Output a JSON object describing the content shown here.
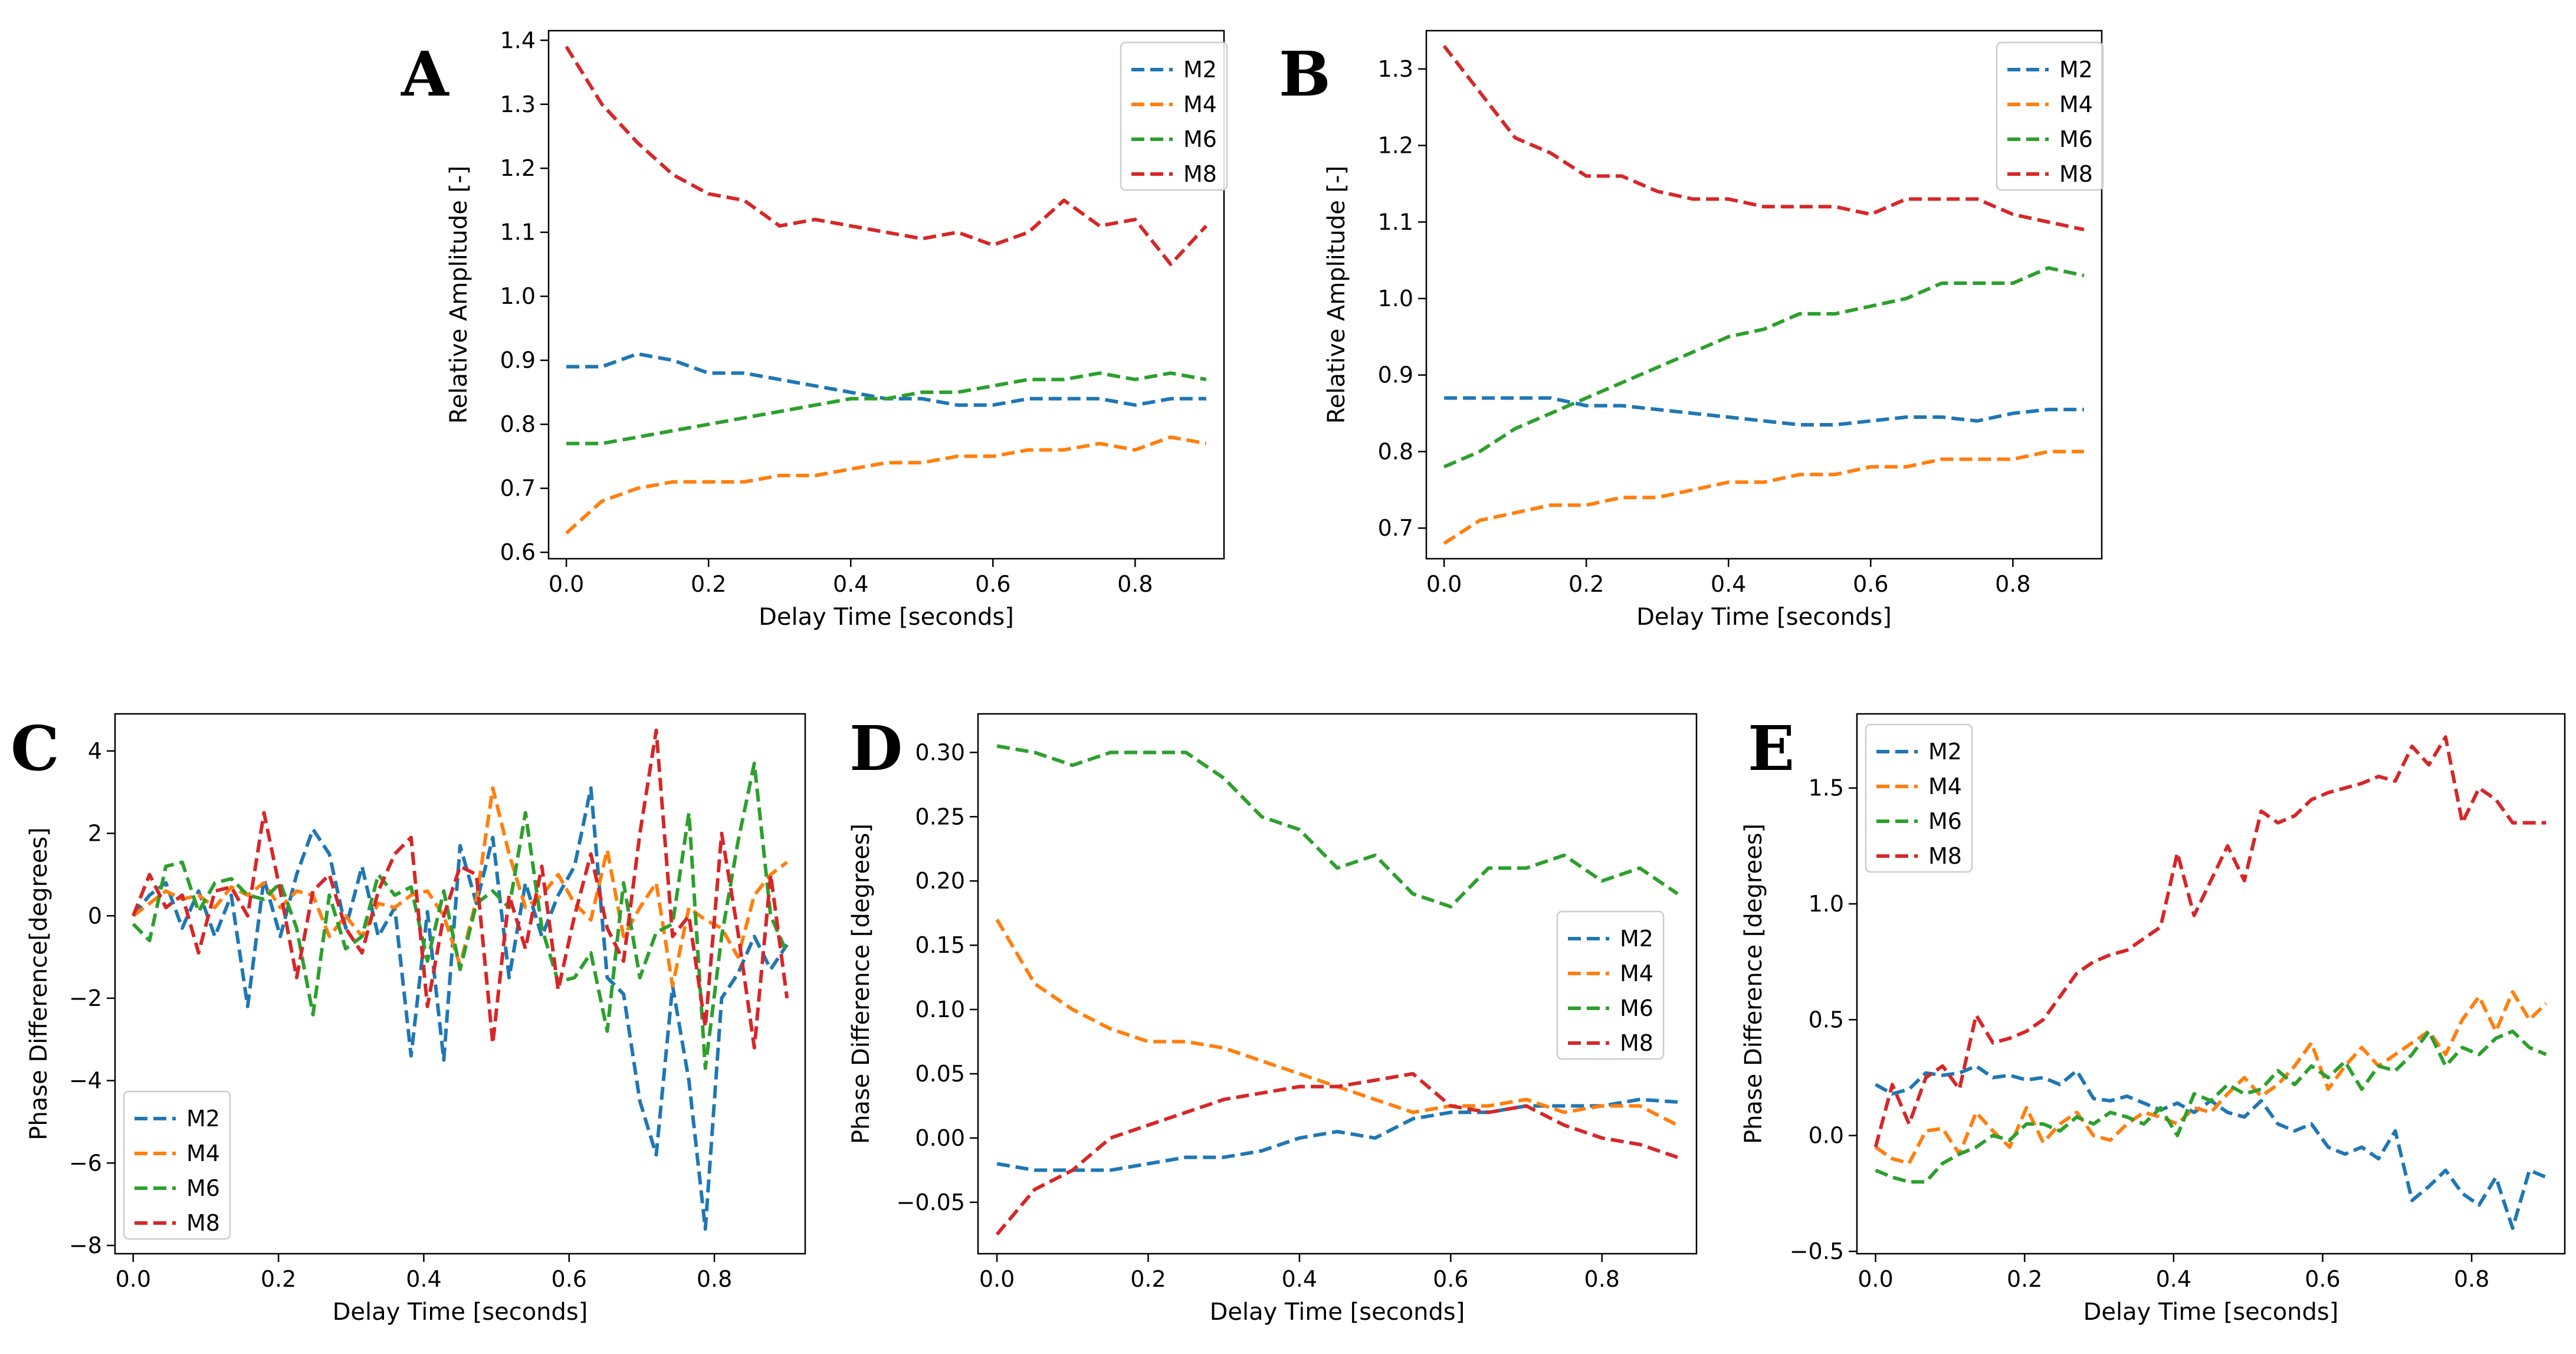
{
  "colors": {
    "M2": "#1f77b4",
    "M4": "#ff7f0e",
    "M6": "#2ca02c",
    "M8": "#d62728"
  },
  "chart_data": [
    {
      "panel": "A",
      "type": "line",
      "xlabel": "Delay Time [seconds]",
      "ylabel": "Relative Amplitude [-]",
      "xlim": [
        -0.025,
        0.925
      ],
      "ylim": [
        0.59,
        1.415
      ],
      "xticks": [
        0.0,
        0.2,
        0.4,
        0.6,
        0.8
      ],
      "xtick_labels": [
        "0.0",
        "0.2",
        "0.4",
        "0.6",
        "0.8"
      ],
      "yticks": [
        0.6,
        0.7,
        0.8,
        0.9,
        1.0,
        1.1,
        1.2,
        1.3,
        1.4
      ],
      "ytick_labels": [
        "0.6",
        "0.7",
        "0.8",
        "0.9",
        "1.0",
        "1.1",
        "1.2",
        "1.3",
        "1.4"
      ],
      "legend_position": "top-right",
      "grid": false,
      "x": [
        0.0,
        0.05,
        0.1,
        0.15,
        0.2,
        0.25,
        0.3,
        0.35,
        0.4,
        0.45,
        0.5,
        0.55,
        0.6,
        0.65,
        0.7,
        0.75,
        0.8,
        0.85,
        0.9
      ],
      "series": [
        {
          "name": "M2",
          "values": [
            0.89,
            0.89,
            0.91,
            0.9,
            0.88,
            0.88,
            0.87,
            0.86,
            0.85,
            0.84,
            0.84,
            0.83,
            0.83,
            0.84,
            0.84,
            0.84,
            0.83,
            0.84,
            0.84
          ]
        },
        {
          "name": "M4",
          "values": [
            0.63,
            0.68,
            0.7,
            0.71,
            0.71,
            0.71,
            0.72,
            0.72,
            0.73,
            0.74,
            0.74,
            0.75,
            0.75,
            0.76,
            0.76,
            0.77,
            0.76,
            0.78,
            0.77
          ]
        },
        {
          "name": "M6",
          "values": [
            0.77,
            0.77,
            0.78,
            0.79,
            0.8,
            0.81,
            0.82,
            0.83,
            0.84,
            0.84,
            0.85,
            0.85,
            0.86,
            0.87,
            0.87,
            0.88,
            0.87,
            0.88,
            0.87
          ]
        },
        {
          "name": "M8",
          "values": [
            1.39,
            1.3,
            1.24,
            1.19,
            1.16,
            1.15,
            1.11,
            1.12,
            1.11,
            1.1,
            1.09,
            1.1,
            1.08,
            1.1,
            1.15,
            1.11,
            1.12,
            1.05,
            1.11
          ]
        }
      ]
    },
    {
      "panel": "B",
      "type": "line",
      "xlabel": "Delay Time [seconds]",
      "ylabel": "Relative Amplitude [-]",
      "xlim": [
        -0.025,
        0.925
      ],
      "ylim": [
        0.66,
        1.35
      ],
      "xticks": [
        0.0,
        0.2,
        0.4,
        0.6,
        0.8
      ],
      "xtick_labels": [
        "0.0",
        "0.2",
        "0.4",
        "0.6",
        "0.8"
      ],
      "yticks": [
        0.7,
        0.8,
        0.9,
        1.0,
        1.1,
        1.2,
        1.3
      ],
      "ytick_labels": [
        "0.7",
        "0.8",
        "0.9",
        "1.0",
        "1.1",
        "1.2",
        "1.3"
      ],
      "legend_position": "top-right",
      "grid": false,
      "x": [
        0.0,
        0.05,
        0.1,
        0.15,
        0.2,
        0.25,
        0.3,
        0.35,
        0.4,
        0.45,
        0.5,
        0.55,
        0.6,
        0.65,
        0.7,
        0.75,
        0.8,
        0.85,
        0.9
      ],
      "series": [
        {
          "name": "M2",
          "values": [
            0.87,
            0.87,
            0.87,
            0.87,
            0.86,
            0.86,
            0.855,
            0.85,
            0.845,
            0.84,
            0.835,
            0.835,
            0.84,
            0.845,
            0.845,
            0.84,
            0.85,
            0.855,
            0.855
          ]
        },
        {
          "name": "M4",
          "values": [
            0.68,
            0.71,
            0.72,
            0.73,
            0.73,
            0.74,
            0.74,
            0.75,
            0.76,
            0.76,
            0.77,
            0.77,
            0.78,
            0.78,
            0.79,
            0.79,
            0.79,
            0.8,
            0.8
          ]
        },
        {
          "name": "M6",
          "values": [
            0.78,
            0.8,
            0.83,
            0.85,
            0.87,
            0.89,
            0.91,
            0.93,
            0.95,
            0.96,
            0.98,
            0.98,
            0.99,
            1.0,
            1.02,
            1.02,
            1.02,
            1.04,
            1.03
          ]
        },
        {
          "name": "M8",
          "values": [
            1.33,
            1.27,
            1.21,
            1.19,
            1.16,
            1.16,
            1.14,
            1.13,
            1.13,
            1.12,
            1.12,
            1.12,
            1.11,
            1.13,
            1.13,
            1.13,
            1.11,
            1.1,
            1.09
          ]
        }
      ]
    },
    {
      "panel": "C",
      "type": "line",
      "xlabel": "Delay Time [seconds]",
      "ylabel": "Phase Difference[degrees]",
      "xlim": [
        -0.025,
        0.925
      ],
      "ylim": [
        -8.2,
        4.9
      ],
      "xticks": [
        0.0,
        0.2,
        0.4,
        0.6,
        0.8
      ],
      "xtick_labels": [
        "0.0",
        "0.2",
        "0.4",
        "0.6",
        "0.8"
      ],
      "yticks": [
        -8,
        -6,
        -4,
        -2,
        0,
        2,
        4
      ],
      "ytick_labels": [
        "−8",
        "−6",
        "−4",
        "−2",
        "0",
        "2",
        "4"
      ],
      "legend_position": "lower-left",
      "grid": false,
      "x": [
        0.0,
        0.0225,
        0.045,
        0.0675,
        0.09,
        0.1125,
        0.135,
        0.1575,
        0.18,
        0.2025,
        0.225,
        0.2475,
        0.27,
        0.2925,
        0.315,
        0.3375,
        0.36,
        0.3825,
        0.405,
        0.4275,
        0.45,
        0.4725,
        0.495,
        0.5175,
        0.54,
        0.5625,
        0.585,
        0.6075,
        0.63,
        0.6525,
        0.675,
        0.6975,
        0.72,
        0.7425,
        0.765,
        0.7875,
        0.81,
        0.8325,
        0.855,
        0.8775,
        0.9
      ],
      "series": [
        {
          "name": "M2",
          "values": [
            0.0,
            0.5,
            0.8,
            -0.3,
            0.6,
            -0.5,
            0.5,
            -2.2,
            0.9,
            -0.5,
            1.0,
            2.1,
            1.5,
            -0.3,
            1.2,
            -0.5,
            0.2,
            -3.4,
            0.1,
            -3.5,
            1.7,
            0.3,
            1.9,
            -1.5,
            0.8,
            -0.5,
            0.5,
            1.2,
            3.1,
            -1.5,
            -1.9,
            -4.5,
            -5.8,
            -1.7,
            -4.0,
            -7.6,
            -2.0,
            -1.4,
            -0.5,
            -1.3,
            -0.7
          ]
        },
        {
          "name": "M4",
          "values": [
            0.0,
            0.3,
            0.6,
            0.4,
            0.5,
            0.2,
            0.7,
            0.5,
            0.8,
            0.2,
            0.6,
            0.5,
            -0.5,
            0.0,
            -0.5,
            0.3,
            0.2,
            0.5,
            0.6,
            0.0,
            -1.2,
            0.4,
            3.1,
            1.5,
            0.2,
            0.5,
            1.0,
            0.3,
            -0.1,
            1.6,
            -0.5,
            0.2,
            0.8,
            -1.7,
            0.2,
            -0.1,
            -0.3,
            -1.0,
            0.5,
            1.0,
            1.3
          ]
        },
        {
          "name": "M6",
          "values": [
            -0.2,
            -0.6,
            1.2,
            1.3,
            0.1,
            0.8,
            0.9,
            0.5,
            0.4,
            0.8,
            -0.3,
            -2.4,
            0.5,
            -0.8,
            -0.5,
            1.0,
            0.5,
            0.7,
            -1.1,
            0.6,
            -1.3,
            0.3,
            0.6,
            0.2,
            2.5,
            -0.3,
            -1.6,
            -1.5,
            -0.9,
            -2.8,
            0.8,
            -1.5,
            -0.4,
            -0.2,
            2.5,
            -3.7,
            -0.5,
            1.8,
            3.7,
            0.0,
            -0.9
          ]
        },
        {
          "name": "M8",
          "values": [
            0.0,
            1.0,
            0.2,
            0.5,
            -0.9,
            0.6,
            0.7,
            0.0,
            2.5,
            0.6,
            -1.5,
            0.6,
            1.0,
            -0.3,
            -0.9,
            0.6,
            1.5,
            1.9,
            -2.2,
            0.0,
            1.2,
            1.0,
            -3.1,
            0.5,
            -0.8,
            1.2,
            -1.8,
            0.0,
            1.5,
            -0.3,
            -1.1,
            2.0,
            4.5,
            -0.5,
            0.0,
            -2.7,
            2.0,
            -0.4,
            -3.2,
            1.0,
            -2.0
          ]
        }
      ]
    },
    {
      "panel": "D",
      "type": "line",
      "xlabel": "Delay Time [seconds]",
      "ylabel": "Phase Difference [degrees]",
      "xlim": [
        -0.025,
        0.925
      ],
      "ylim": [
        -0.09,
        0.33
      ],
      "xticks": [
        0.0,
        0.2,
        0.4,
        0.6,
        0.8
      ],
      "xtick_labels": [
        "0.0",
        "0.2",
        "0.4",
        "0.6",
        "0.8"
      ],
      "yticks": [
        -0.05,
        0.0,
        0.05,
        0.1,
        0.15,
        0.2,
        0.25,
        0.3
      ],
      "ytick_labels": [
        "−0.05",
        "0.00",
        "0.05",
        "0.10",
        "0.15",
        "0.20",
        "0.25",
        "0.30"
      ],
      "legend_position": "center-right",
      "grid": false,
      "x": [
        0.0,
        0.05,
        0.1,
        0.15,
        0.2,
        0.25,
        0.3,
        0.35,
        0.4,
        0.45,
        0.5,
        0.55,
        0.6,
        0.65,
        0.7,
        0.75,
        0.8,
        0.85,
        0.9
      ],
      "series": [
        {
          "name": "M2",
          "values": [
            -0.02,
            -0.025,
            -0.025,
            -0.025,
            -0.02,
            -0.015,
            -0.015,
            -0.01,
            0.0,
            0.005,
            0.0,
            0.015,
            0.02,
            0.02,
            0.025,
            0.025,
            0.025,
            0.03,
            0.028
          ]
        },
        {
          "name": "M4",
          "values": [
            0.17,
            0.12,
            0.1,
            0.085,
            0.075,
            0.075,
            0.07,
            0.06,
            0.05,
            0.04,
            0.03,
            0.02,
            0.025,
            0.025,
            0.03,
            0.02,
            0.025,
            0.025,
            0.01
          ]
        },
        {
          "name": "M6",
          "values": [
            0.305,
            0.3,
            0.29,
            0.3,
            0.3,
            0.3,
            0.28,
            0.25,
            0.24,
            0.21,
            0.22,
            0.19,
            0.18,
            0.21,
            0.21,
            0.22,
            0.2,
            0.21,
            0.19
          ]
        },
        {
          "name": "M8",
          "values": [
            -0.075,
            -0.04,
            -0.025,
            0.0,
            0.01,
            0.02,
            0.03,
            0.035,
            0.04,
            0.04,
            0.045,
            0.05,
            0.025,
            0.02,
            0.025,
            0.01,
            0.0,
            -0.005,
            -0.015
          ]
        }
      ]
    },
    {
      "panel": "E",
      "type": "line",
      "xlabel": "Delay Time [seconds]",
      "ylabel": "Phase Difference [degrees]",
      "xlim": [
        -0.025,
        0.925
      ],
      "ylim": [
        -0.51,
        1.82
      ],
      "xticks": [
        0.0,
        0.2,
        0.4,
        0.6,
        0.8
      ],
      "xtick_labels": [
        "0.0",
        "0.2",
        "0.4",
        "0.6",
        "0.8"
      ],
      "yticks": [
        -0.5,
        0.0,
        0.5,
        1.0,
        1.5
      ],
      "ytick_labels": [
        "−0.5",
        "0.0",
        "0.5",
        "1.0",
        "1.5"
      ],
      "legend_position": "top-left",
      "grid": false,
      "x": [
        0.0,
        0.0225,
        0.045,
        0.0675,
        0.09,
        0.1125,
        0.135,
        0.1575,
        0.18,
        0.2025,
        0.225,
        0.2475,
        0.27,
        0.2925,
        0.315,
        0.3375,
        0.36,
        0.3825,
        0.405,
        0.4275,
        0.45,
        0.4725,
        0.495,
        0.5175,
        0.54,
        0.5625,
        0.585,
        0.6075,
        0.63,
        0.6525,
        0.675,
        0.6975,
        0.72,
        0.7425,
        0.765,
        0.7875,
        0.81,
        0.8325,
        0.855,
        0.8775,
        0.9
      ],
      "series": [
        {
          "name": "M2",
          "values": [
            0.22,
            0.18,
            0.2,
            0.27,
            0.26,
            0.27,
            0.3,
            0.25,
            0.26,
            0.24,
            0.25,
            0.22,
            0.28,
            0.16,
            0.15,
            0.17,
            0.14,
            0.11,
            0.14,
            0.1,
            0.15,
            0.1,
            0.08,
            0.15,
            0.05,
            0.02,
            0.05,
            -0.05,
            -0.08,
            -0.05,
            -0.1,
            0.02,
            -0.28,
            -0.22,
            -0.15,
            -0.25,
            -0.3,
            -0.18,
            -0.4,
            -0.15,
            -0.18
          ]
        },
        {
          "name": "M4",
          "values": [
            -0.05,
            -0.1,
            -0.12,
            0.02,
            0.03,
            -0.08,
            0.1,
            0.02,
            -0.05,
            0.12,
            -0.03,
            0.05,
            0.1,
            0.0,
            -0.02,
            0.05,
            0.1,
            0.08,
            0.05,
            0.12,
            0.1,
            0.18,
            0.25,
            0.17,
            0.22,
            0.3,
            0.4,
            0.2,
            0.3,
            0.38,
            0.3,
            0.35,
            0.4,
            0.45,
            0.35,
            0.5,
            0.6,
            0.45,
            0.62,
            0.5,
            0.57
          ]
        },
        {
          "name": "M6",
          "values": [
            -0.15,
            -0.18,
            -0.2,
            -0.2,
            -0.12,
            -0.08,
            -0.05,
            0.0,
            -0.02,
            0.05,
            0.05,
            0.02,
            0.08,
            0.05,
            0.1,
            0.08,
            0.05,
            0.12,
            0.0,
            0.18,
            0.15,
            0.22,
            0.18,
            0.2,
            0.28,
            0.22,
            0.3,
            0.25,
            0.32,
            0.2,
            0.3,
            0.28,
            0.35,
            0.45,
            0.3,
            0.38,
            0.35,
            0.42,
            0.45,
            0.38,
            0.35
          ]
        },
        {
          "name": "M8",
          "values": [
            -0.05,
            0.22,
            0.05,
            0.25,
            0.3,
            0.2,
            0.52,
            0.4,
            0.42,
            0.45,
            0.5,
            0.6,
            0.7,
            0.75,
            0.78,
            0.8,
            0.85,
            0.9,
            1.22,
            0.95,
            1.1,
            1.25,
            1.1,
            1.4,
            1.35,
            1.38,
            1.45,
            1.48,
            1.5,
            1.52,
            1.55,
            1.53,
            1.68,
            1.6,
            1.72,
            1.35,
            1.5,
            1.45,
            1.35,
            1.35,
            1.35
          ]
        }
      ]
    }
  ]
}
